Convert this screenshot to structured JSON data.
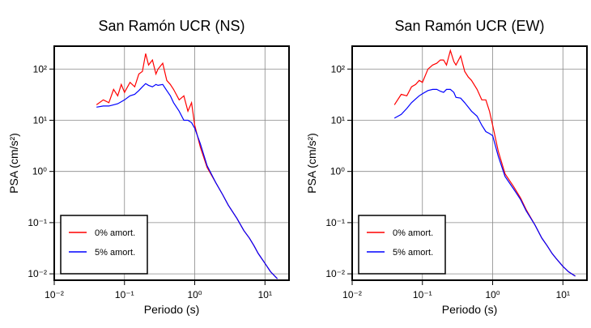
{
  "chart_data": [
    {
      "type": "line",
      "title": "San Ramón UCR (NS)",
      "x_label": "Periodo (s)",
      "y_label": "PSA (cm/s²)",
      "log_x": true,
      "log_y": true,
      "grid": true,
      "legend": "lower left",
      "xlim": [
        0.01,
        22
      ],
      "ylim": [
        0.0075,
        280
      ],
      "xticks": [
        {
          "value": 0.01,
          "label": "10⁻²"
        },
        {
          "value": 0.1,
          "label": "10⁻¹"
        },
        {
          "value": 1,
          "label": "10⁰"
        },
        {
          "value": 10,
          "label": "10¹"
        }
      ],
      "yticks": [
        {
          "value": 0.01,
          "label": "10⁻²"
        },
        {
          "value": 0.1,
          "label": "10⁻¹"
        },
        {
          "value": 1,
          "label": "10⁰"
        },
        {
          "value": 10,
          "label": "10¹"
        },
        {
          "value": 100,
          "label": "10²"
        }
      ],
      "x": [
        0.04,
        0.05,
        0.06,
        0.07,
        0.08,
        0.09,
        0.1,
        0.12,
        0.14,
        0.16,
        0.18,
        0.2,
        0.22,
        0.25,
        0.28,
        0.3,
        0.35,
        0.4,
        0.45,
        0.5,
        0.6,
        0.7,
        0.8,
        0.9,
        1.0,
        1.2,
        1.5,
        2,
        2.5,
        3,
        4,
        5,
        6,
        7,
        8,
        10,
        12,
        15
      ],
      "series": [
        {
          "name": "0% amort.",
          "color": "#ff0000",
          "values": [
            20,
            25,
            22,
            40,
            30,
            50,
            35,
            55,
            45,
            80,
            90,
            200,
            120,
            150,
            80,
            100,
            130,
            60,
            50,
            40,
            25,
            30,
            15,
            22,
            8,
            3,
            1.2,
            0.6,
            0.35,
            0.22,
            0.12,
            0.07,
            0.05,
            0.035,
            0.025,
            0.016,
            0.011,
            0.008
          ]
        },
        {
          "name": "5% amort.",
          "color": "#0000ff",
          "values": [
            18,
            19,
            19,
            20,
            21,
            23,
            25,
            30,
            32,
            38,
            45,
            52,
            48,
            45,
            50,
            48,
            50,
            38,
            30,
            22,
            15,
            10,
            10,
            9,
            7,
            3.5,
            1.3,
            0.6,
            0.35,
            0.22,
            0.12,
            0.07,
            0.05,
            0.035,
            0.025,
            0.016,
            0.011,
            0.008
          ]
        }
      ]
    },
    {
      "type": "line",
      "title": "San Ramón UCR (EW)",
      "x_label": "Periodo (s)",
      "y_label": "PSA (cm/s²)",
      "log_x": true,
      "log_y": true,
      "grid": true,
      "legend": "lower left",
      "xlim": [
        0.01,
        22
      ],
      "ylim": [
        0.0075,
        280
      ],
      "xticks": [
        {
          "value": 0.01,
          "label": "10⁻²"
        },
        {
          "value": 0.1,
          "label": "10⁻¹"
        },
        {
          "value": 1,
          "label": "10⁰"
        },
        {
          "value": 10,
          "label": "10¹"
        }
      ],
      "yticks": [
        {
          "value": 0.01,
          "label": "10⁻²"
        },
        {
          "value": 0.1,
          "label": "10⁻¹"
        },
        {
          "value": 1,
          "label": "10⁰"
        },
        {
          "value": 10,
          "label": "10¹"
        },
        {
          "value": 100,
          "label": "10²"
        }
      ],
      "x": [
        0.04,
        0.05,
        0.06,
        0.07,
        0.08,
        0.09,
        0.1,
        0.12,
        0.14,
        0.16,
        0.18,
        0.2,
        0.22,
        0.25,
        0.28,
        0.3,
        0.35,
        0.4,
        0.45,
        0.5,
        0.6,
        0.7,
        0.8,
        0.9,
        1.0,
        1.2,
        1.5,
        2,
        2.5,
        3,
        4,
        5,
        6,
        7,
        8,
        10,
        12,
        15
      ],
      "series": [
        {
          "name": "0% amort.",
          "color": "#ff0000",
          "values": [
            20,
            32,
            30,
            45,
            50,
            60,
            55,
            100,
            120,
            130,
            150,
            150,
            120,
            230,
            140,
            120,
            180,
            90,
            70,
            60,
            40,
            25,
            25,
            15,
            8,
            2.5,
            0.9,
            0.5,
            0.3,
            0.18,
            0.09,
            0.05,
            0.035,
            0.025,
            0.02,
            0.014,
            0.011,
            0.009
          ]
        },
        {
          "name": "5% amort.",
          "color": "#0000ff",
          "values": [
            11,
            13,
            17,
            22,
            26,
            30,
            33,
            38,
            40,
            40,
            37,
            35,
            40,
            40,
            35,
            28,
            27,
            22,
            18,
            15,
            12,
            8,
            6,
            5.5,
            5,
            2,
            0.8,
            0.45,
            0.28,
            0.17,
            0.09,
            0.05,
            0.035,
            0.025,
            0.02,
            0.014,
            0.011,
            0.009
          ]
        }
      ]
    }
  ]
}
